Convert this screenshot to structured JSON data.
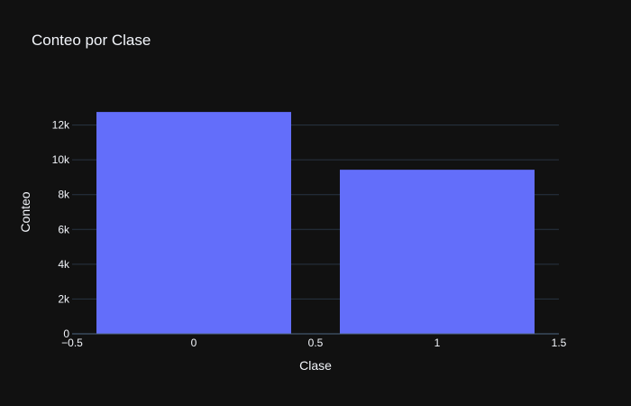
{
  "chart_data": {
    "type": "bar",
    "title": "Conteo por Clase",
    "xlabel": "Clase",
    "ylabel": "Conteo",
    "categories": [
      0,
      1
    ],
    "values": [
      12750,
      9430
    ],
    "bar_width": 0.8,
    "xlim": [
      -0.5,
      1.5
    ],
    "ylim": [
      0,
      14000
    ],
    "x_ticks": [
      -0.5,
      0,
      0.5,
      1,
      1.5
    ],
    "x_tick_labels": [
      "−0.5",
      "0",
      "0.5",
      "1",
      "1.5"
    ],
    "y_ticks": [
      0,
      2000,
      4000,
      6000,
      8000,
      10000,
      12000
    ],
    "y_tick_labels": [
      "0",
      "2k",
      "4k",
      "6k",
      "8k",
      "10k",
      "12k"
    ],
    "grid": true,
    "colors": {
      "background": "#111111",
      "bar": "#636efa",
      "grid": "#283442",
      "text": "#f2f5fa"
    }
  }
}
